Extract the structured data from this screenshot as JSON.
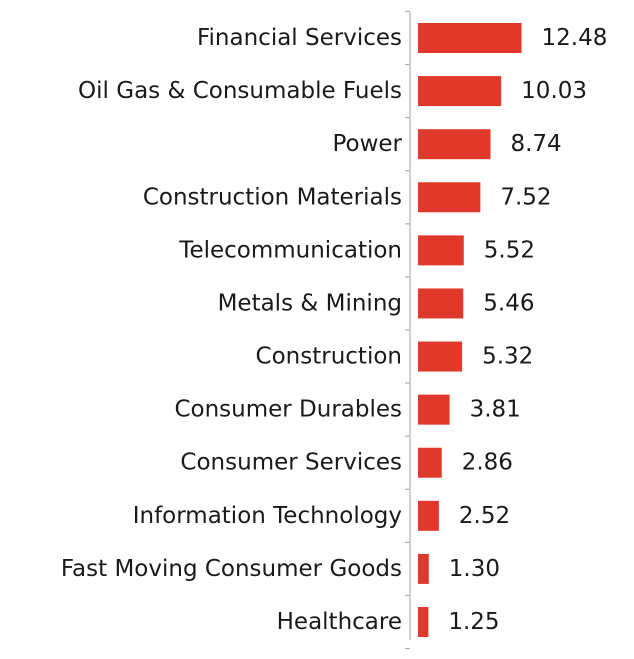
{
  "chart_data": {
    "type": "bar",
    "orientation": "horizontal",
    "categories": [
      "Financial Services",
      "Oil Gas & Consumable Fuels",
      "Power",
      "Construction Materials",
      "Telecommunication",
      "Metals & Mining",
      "Construction",
      "Consumer Durables",
      "Consumer Services",
      "Information Technology",
      "Fast Moving Consumer Goods",
      "Healthcare"
    ],
    "values": [
      12.48,
      10.03,
      8.74,
      7.52,
      5.52,
      5.46,
      5.32,
      3.81,
      2.86,
      2.52,
      1.3,
      1.25
    ],
    "value_labels": [
      "12.48",
      "10.03",
      "8.74",
      "7.52",
      "5.52",
      "5.46",
      "5.32",
      "3.81",
      "2.86",
      "2.52",
      "1.30",
      "1.25"
    ],
    "title": "",
    "xlabel": "",
    "ylabel": "",
    "xlim": [
      0,
      12.48
    ],
    "grid": false,
    "legend": "none",
    "bar_color": "#e0392b",
    "axis_color": "#b0b0b0",
    "text_color": "#1a1a1a"
  }
}
